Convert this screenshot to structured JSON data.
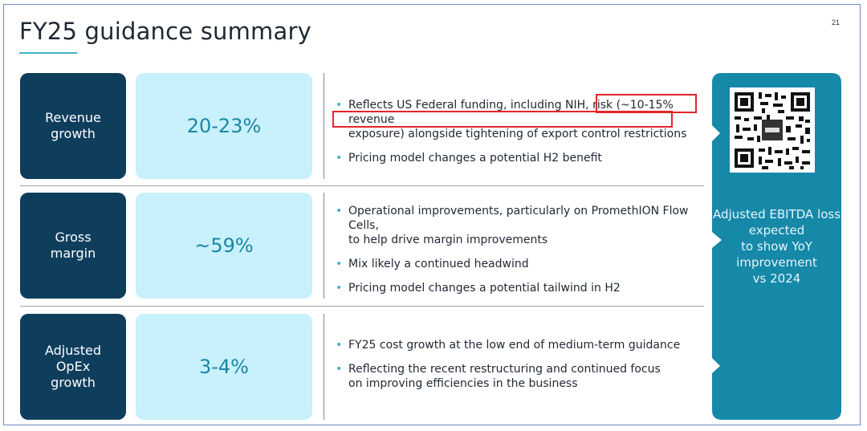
{
  "page": {
    "title": "FY25 guidance summary",
    "page_number": "21"
  },
  "rows": [
    {
      "label": "Revenue\ngrowth",
      "value": "20-23%",
      "bullets": [
        "Reflects US Federal funding, including NIH, risk (~10-15% revenue\nexposure) alongside tightening of export control restrictions",
        "Pricing model changes a potential H2 benefit"
      ]
    },
    {
      "label": "Gross\nmargin",
      "value": "~59%",
      "bullets": [
        "Operational improvements, particularly on PromethION Flow Cells,\nto help drive margin improvements",
        "Mix likely a continued headwind",
        "Pricing model changes a potential tailwind in H2"
      ]
    },
    {
      "label": "Adjusted\nOpEx\ngrowth",
      "value": "3-4%",
      "bullets": [
        "FY25 cost growth at the low end of medium-term guidance",
        "Reflecting the recent restructuring and continued focus\non improving efficiencies in the business"
      ]
    }
  ],
  "side_panel": {
    "text": "Adjusted EBITDA loss\nexpected\nto show YoY\nimprovement\nvs 2024",
    "qr_icon": "qr-code-icon"
  },
  "colors": {
    "label_bg": "#0f3e5d",
    "value_bg": "#c8f1fb",
    "value_text": "#1b86a4",
    "panel_bg": "#1688a8",
    "highlight": "#e8232b"
  }
}
